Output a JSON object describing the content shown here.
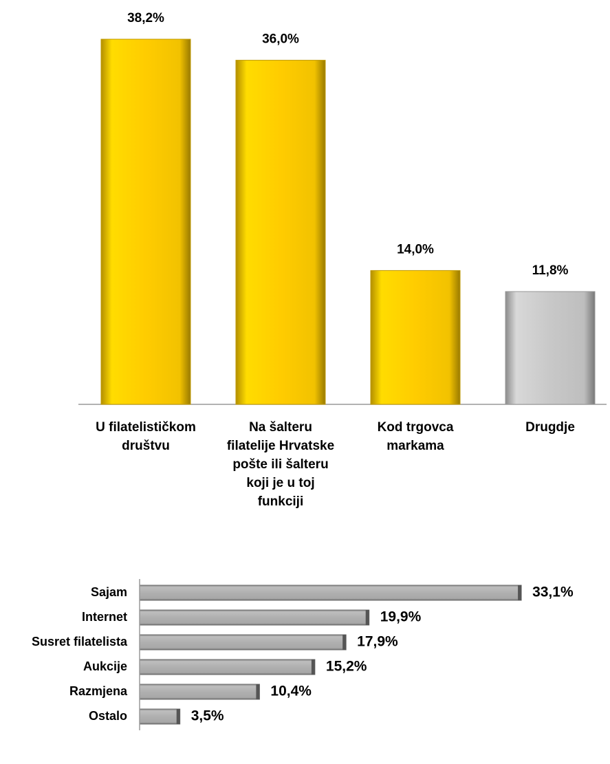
{
  "chart_data": [
    {
      "type": "bar",
      "categories": [
        "U filatelističkom društvu",
        "Na šalteru filatelije Hrvatske pošte ili šalteru koji je u toj funkciji",
        "Kod trgovca markama",
        "Drugdje"
      ],
      "values": [
        38.2,
        36.0,
        14.0,
        11.8
      ],
      "value_labels": [
        "38,2%",
        "36,0%",
        "14,0%",
        "11,8%"
      ],
      "colors": [
        "#FFCC00",
        "#FFCC00",
        "#FFCC00",
        "#C8C8C8"
      ]
    },
    {
      "type": "hbar",
      "categories": [
        "Sajam",
        "Internet",
        "Susret filatelista",
        "Aukcije",
        "Razmjena",
        "Ostalo"
      ],
      "values": [
        33.1,
        19.9,
        17.9,
        15.2,
        10.4,
        3.5
      ],
      "value_labels": [
        "33,1%",
        "19,9%",
        "17,9%",
        "15,2%",
        "10,4%",
        "3,5%"
      ],
      "color": "#B0B0B0"
    }
  ]
}
